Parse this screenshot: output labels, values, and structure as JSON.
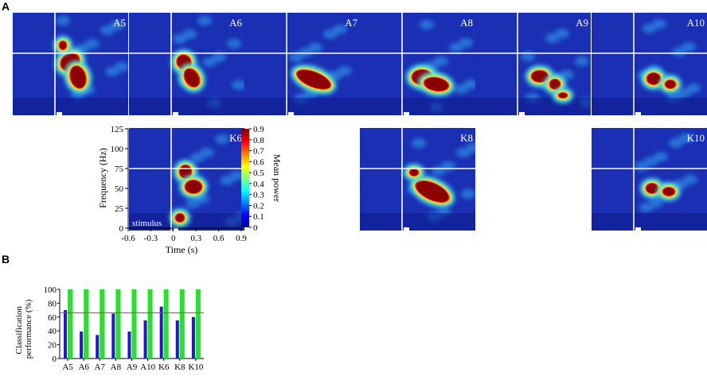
{
  "panel_letters": {
    "a": "A",
    "b": "B"
  },
  "stimulus_label": "stimulus",
  "colors": {
    "background_blue": "#1a2fb4",
    "hot_core": "#8b0000",
    "green_bar": "#22e52a",
    "blue_bar": "#1a1ad0",
    "threshold_line": "#ff2020"
  },
  "chart_data": [
    {
      "type": "heatmap",
      "description_rows": [
        [
          "A5",
          "A6",
          "A7",
          "A8",
          "A9",
          "A10"
        ],
        [
          "K6",
          "K8",
          "K10"
        ]
      ],
      "tiles": [
        {
          "label": "A5"
        },
        {
          "label": "A6"
        },
        {
          "label": "A7"
        },
        {
          "label": "A8"
        },
        {
          "label": "A9"
        },
        {
          "label": "A10"
        },
        {
          "label": "K6"
        },
        {
          "label": "K8"
        },
        {
          "label": "K10"
        }
      ],
      "xlabel": "Time (s)",
      "ylabel": "Frequency (Hz)",
      "x_ticks": [
        "-0.6",
        "-0.3",
        "0",
        "0.3",
        "0.6",
        "0.9"
      ],
      "y_ticks": [
        "0",
        "25",
        "50",
        "75",
        "100",
        "125"
      ],
      "xlim": [
        -0.6,
        0.9
      ],
      "ylim": [
        0,
        125
      ],
      "colorbar": {
        "label": "Mean power",
        "ticks": [
          "0",
          "0.1",
          "0.2",
          "0.3",
          "0.4",
          "0.5",
          "0.6",
          "0.7",
          "0.8",
          "0.9"
        ],
        "range": [
          0,
          0.9
        ]
      }
    },
    {
      "type": "bar",
      "categories": [
        "A5",
        "A6",
        "A7",
        "A8",
        "A9",
        "A10",
        "K6",
        "K8",
        "K10"
      ],
      "series": [
        {
          "values": [
            70,
            39,
            34,
            65,
            39,
            55,
            75,
            55,
            60
          ],
          "color": "#1a1ad0"
        },
        {
          "values": [
            100,
            100,
            100,
            100,
            100,
            100,
            100,
            100,
            100
          ],
          "color": "#22e52a"
        }
      ],
      "threshold": 66,
      "ylabel": "Classification performance (%)",
      "y_ticks": [
        "0",
        "20",
        "40",
        "60",
        "80",
        "100"
      ],
      "ylim": [
        0,
        100
      ]
    }
  ]
}
